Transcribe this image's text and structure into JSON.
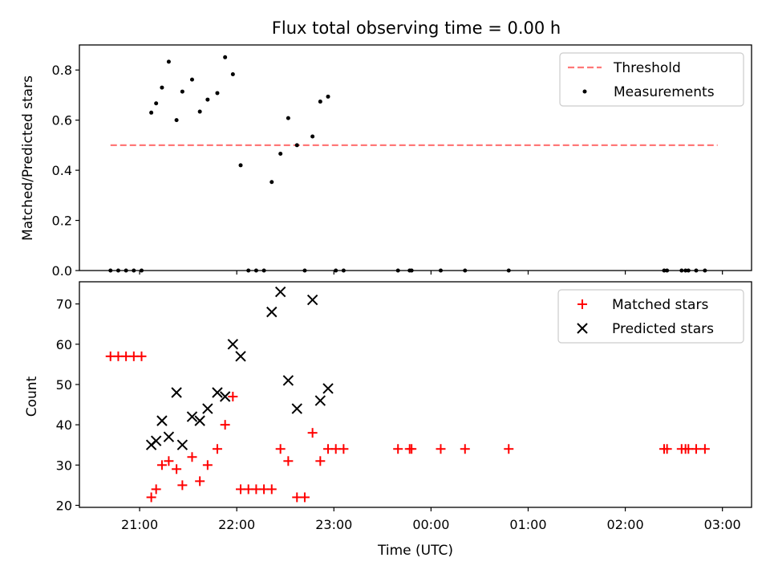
{
  "chart_data": [
    {
      "type": "scatter",
      "title": "Flux total observing time = 0.00 h",
      "xlabel": "",
      "ylabel": "Matched/Predicted stars",
      "x_unit": "hours since 21:00 UTC",
      "xlim": [
        -0.62,
        6.3
      ],
      "ylim": [
        0,
        0.9
      ],
      "y_ticks": [
        0.0,
        0.2,
        0.4,
        0.6,
        0.8
      ],
      "y_tick_labels": [
        "0.0",
        "0.2",
        "0.4",
        "0.6",
        "0.8"
      ],
      "x_ticks": [
        0,
        1,
        2,
        3,
        4,
        5,
        6
      ],
      "show_x_tick_labels": false,
      "legend": {
        "position": "top-right",
        "entries": [
          "Threshold",
          "Measurements"
        ]
      },
      "threshold": {
        "name": "Threshold",
        "value": 0.5,
        "x_range": [
          -0.3,
          5.95
        ],
        "color": "#ff7878",
        "style": "dashed"
      },
      "series": [
        {
          "name": "Measurements",
          "color": "#000000",
          "points": [
            [
              -0.3,
              0.0
            ],
            [
              -0.22,
              0.0
            ],
            [
              -0.14,
              0.0
            ],
            [
              -0.06,
              0.0
            ],
            [
              0.02,
              0.0
            ],
            [
              0.12,
              0.63
            ],
            [
              0.17,
              0.667
            ],
            [
              0.23,
              0.73
            ],
            [
              0.3,
              0.833
            ],
            [
              0.38,
              0.6
            ],
            [
              0.44,
              0.714
            ],
            [
              0.54,
              0.762
            ],
            [
              0.62,
              0.634
            ],
            [
              0.7,
              0.682
            ],
            [
              0.8,
              0.708
            ],
            [
              0.88,
              0.851
            ],
            [
              0.96,
              0.783
            ],
            [
              1.04,
              0.42
            ],
            [
              1.12,
              0.0
            ],
            [
              1.2,
              0.0
            ],
            [
              1.28,
              0.0
            ],
            [
              1.36,
              0.353
            ],
            [
              1.45,
              0.466
            ],
            [
              1.53,
              0.608
            ],
            [
              1.62,
              0.5
            ],
            [
              1.7,
              0.0
            ],
            [
              1.78,
              0.535
            ],
            [
              1.86,
              0.674
            ],
            [
              1.94,
              0.694
            ],
            [
              2.02,
              0.0
            ],
            [
              2.1,
              0.0
            ],
            [
              2.66,
              0.0
            ],
            [
              2.78,
              0.0
            ],
            [
              2.8,
              0.0
            ],
            [
              3.1,
              0.0
            ],
            [
              3.35,
              0.0
            ],
            [
              3.8,
              0.0
            ],
            [
              5.4,
              0.0
            ],
            [
              5.43,
              0.0
            ],
            [
              5.58,
              0.0
            ],
            [
              5.62,
              0.0
            ],
            [
              5.65,
              0.0
            ],
            [
              5.73,
              0.0
            ],
            [
              5.82,
              0.0
            ]
          ]
        }
      ]
    },
    {
      "type": "scatter",
      "title": "",
      "xlabel": "Time (UTC)",
      "ylabel": "Count",
      "x_unit": "hours since 21:00 UTC",
      "xlim": [
        -0.62,
        6.3
      ],
      "ylim": [
        19.5,
        75.5
      ],
      "y_ticks": [
        20,
        30,
        40,
        50,
        60,
        70
      ],
      "y_tick_labels": [
        "20",
        "30",
        "40",
        "50",
        "60",
        "70"
      ],
      "x_ticks": [
        0,
        1,
        2,
        3,
        4,
        5,
        6
      ],
      "x_tick_labels": [
        "21:00",
        "22:00",
        "23:00",
        "00:00",
        "01:00",
        "02:00",
        "03:00"
      ],
      "legend": {
        "position": "top-right",
        "entries": [
          "Matched stars",
          "Predicted stars"
        ]
      },
      "series": [
        {
          "name": "Matched stars",
          "marker": "plus",
          "color": "#ff0000",
          "points": [
            [
              -0.3,
              57
            ],
            [
              -0.22,
              57
            ],
            [
              -0.14,
              57
            ],
            [
              -0.06,
              57
            ],
            [
              0.02,
              57
            ],
            [
              0.12,
              22
            ],
            [
              0.17,
              24
            ],
            [
              0.23,
              30
            ],
            [
              0.3,
              31
            ],
            [
              0.38,
              29
            ],
            [
              0.44,
              25
            ],
            [
              0.54,
              32
            ],
            [
              0.62,
              26
            ],
            [
              0.7,
              30
            ],
            [
              0.8,
              34
            ],
            [
              0.88,
              40
            ],
            [
              0.96,
              47
            ],
            [
              1.04,
              24
            ],
            [
              1.12,
              24
            ],
            [
              1.2,
              24
            ],
            [
              1.28,
              24
            ],
            [
              1.36,
              24
            ],
            [
              1.45,
              34
            ],
            [
              1.53,
              31
            ],
            [
              1.62,
              22
            ],
            [
              1.7,
              22
            ],
            [
              1.78,
              38
            ],
            [
              1.86,
              31
            ],
            [
              1.94,
              34
            ],
            [
              2.02,
              34
            ],
            [
              2.1,
              34
            ],
            [
              2.66,
              34
            ],
            [
              2.78,
              34
            ],
            [
              2.8,
              34
            ],
            [
              3.1,
              34
            ],
            [
              3.35,
              34
            ],
            [
              3.8,
              34
            ],
            [
              5.4,
              34
            ],
            [
              5.43,
              34
            ],
            [
              5.58,
              34
            ],
            [
              5.62,
              34
            ],
            [
              5.65,
              34
            ],
            [
              5.73,
              34
            ],
            [
              5.82,
              34
            ]
          ]
        },
        {
          "name": "Predicted stars",
          "marker": "x",
          "color": "#000000",
          "points": [
            [
              0.12,
              35
            ],
            [
              0.17,
              36
            ],
            [
              0.23,
              41
            ],
            [
              0.3,
              37
            ],
            [
              0.38,
              48
            ],
            [
              0.44,
              35
            ],
            [
              0.54,
              42
            ],
            [
              0.62,
              41
            ],
            [
              0.7,
              44
            ],
            [
              0.8,
              48
            ],
            [
              0.88,
              47
            ],
            [
              0.96,
              60
            ],
            [
              1.04,
              57
            ],
            [
              1.36,
              68
            ],
            [
              1.45,
              73
            ],
            [
              1.53,
              51
            ],
            [
              1.62,
              44
            ],
            [
              1.78,
              71
            ],
            [
              1.86,
              46
            ],
            [
              1.94,
              49
            ]
          ]
        }
      ]
    }
  ]
}
